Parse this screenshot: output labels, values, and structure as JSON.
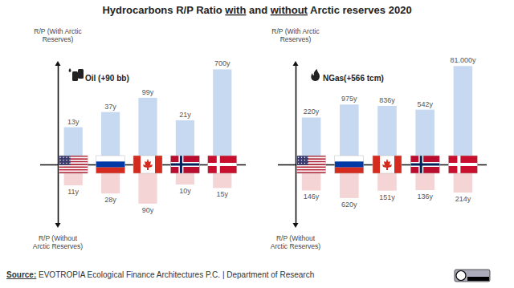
{
  "title": "Hydrocarbons R/P Ratio with and without Arctic reserves 2020",
  "source": "Source: EVOTROPIA Ecological Finance Architectures P.C. | Department of Research",
  "chart_data": [
    {
      "type": "bar",
      "annotation": "Oil (+90 bb)",
      "categories": [
        null,
        null,
        null,
        null,
        null
      ],
      "log": "y",
      "tick_labels": false,
      "data_labels": true,
      "ylim": [
        1,
        1000
      ],
      "y2lim": [
        1,
        1000
      ],
      "series": [
        {
          "name": "R/P (With Arctic Reserves)",
          "color": "#c6d9f1",
          "values": [
            13,
            37,
            99,
            21,
            700
          ],
          "value_labels": [
            "13y",
            "37y",
            "99y",
            "21y",
            "700y"
          ]
        },
        {
          "name": "R/P (Without Arctic Reserves)",
          "color": "#f4d4d4",
          "axis": "y2",
          "values": [
            11,
            28,
            90,
            10,
            15
          ],
          "value_labels": [
            "11y",
            "28y",
            "90y",
            "10y",
            "15y"
          ]
        }
      ]
    },
    {
      "type": "bar",
      "annotation": "NGas(+566 tcm)",
      "categories": [
        null,
        null,
        null,
        null,
        null
      ],
      "log": "y",
      "tick_labels": false,
      "data_labels": true,
      "ylim": [
        1,
        100000
      ],
      "y2lim": [
        1,
        100000
      ],
      "series": [
        {
          "name": "R/P (With Arctic Reserves)",
          "color": "#c6d9f1",
          "values": [
            220,
            975,
            836,
            542,
            81000
          ],
          "value_labels": [
            "220y",
            "975y",
            "836y",
            "542y",
            "81.000y"
          ]
        },
        {
          "name": "R/P (Without Arctic Reserves)",
          "color": "#f4d4d4",
          "axis": "y2",
          "values": [
            146,
            620,
            151,
            136,
            214
          ],
          "value_labels": [
            "146y",
            "620y",
            "151y",
            "136y",
            "214y"
          ]
        }
      ]
    }
  ]
}
